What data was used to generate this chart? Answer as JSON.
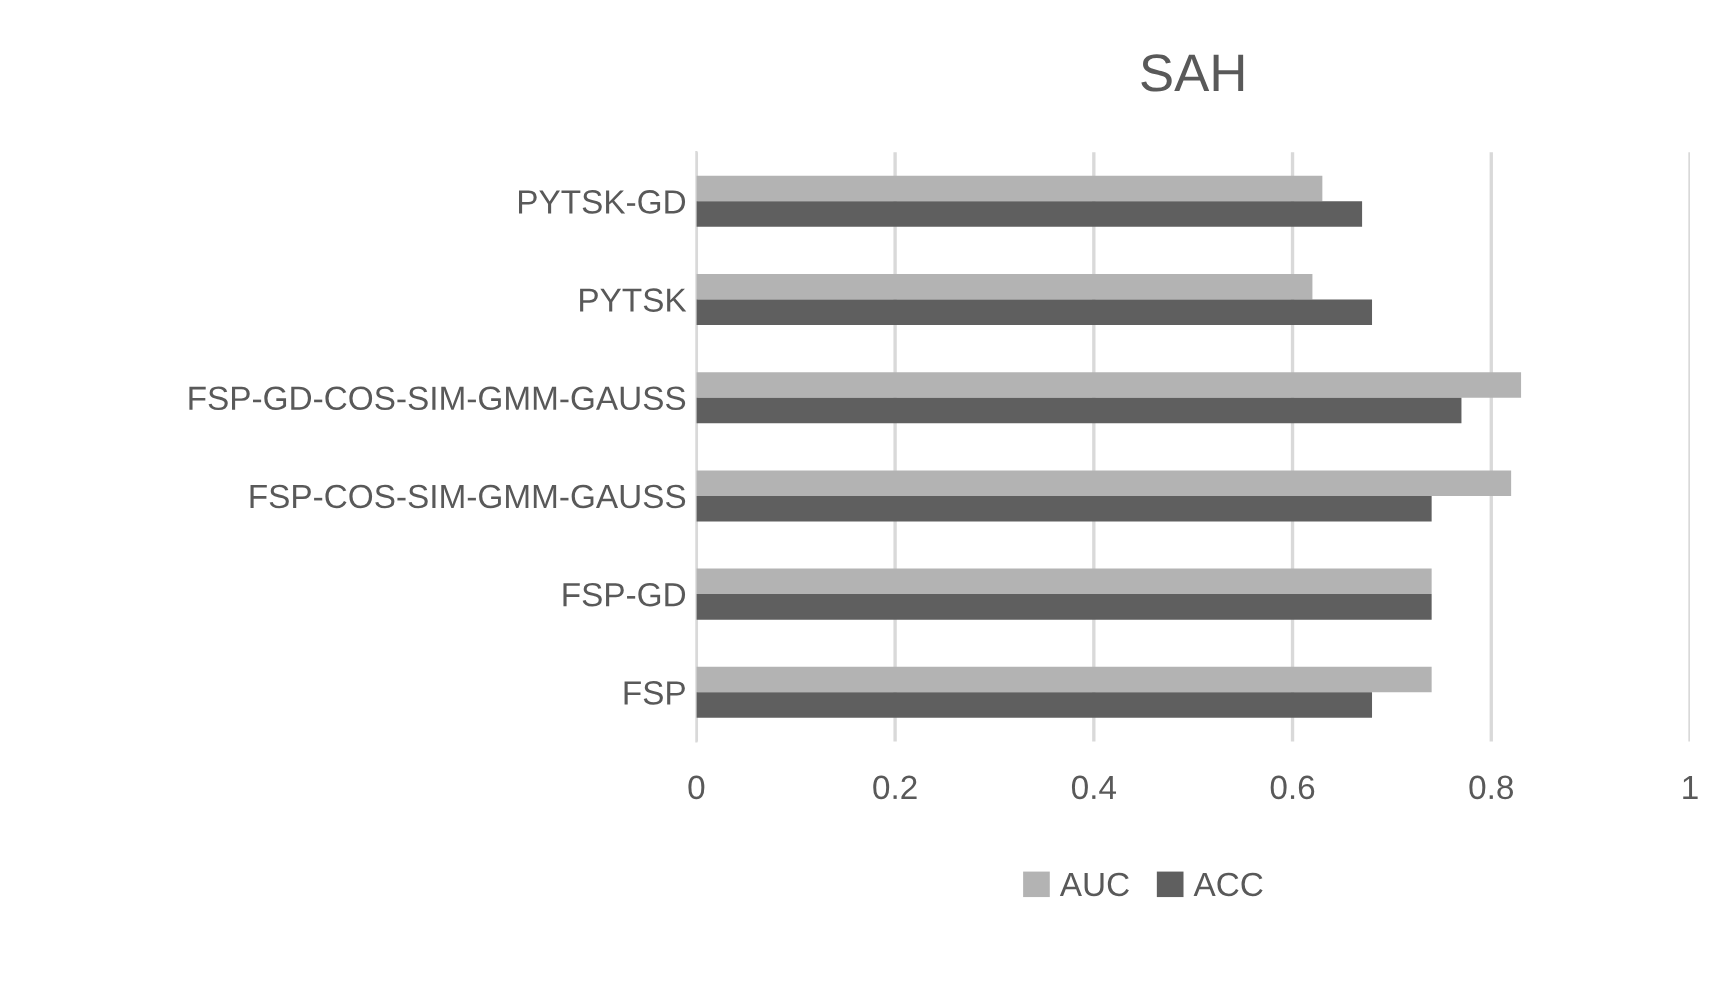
{
  "chart_data": {
    "type": "bar",
    "orientation": "horizontal",
    "title": "SAH",
    "categories": [
      "PYTSK-GD",
      "PYTSK",
      "FSP-GD-COS-SIM-GMM-GAUSS",
      "FSP-COS-SIM-GMM-GAUSS",
      "FSP-GD",
      "FSP"
    ],
    "series": [
      {
        "name": "AUC",
        "color": "#b3b3b3",
        "values": [
          0.63,
          0.62,
          0.83,
          0.82,
          0.74,
          0.74
        ]
      },
      {
        "name": "ACC",
        "color": "#5f5f5f",
        "values": [
          0.67,
          0.68,
          0.77,
          0.74,
          0.74,
          0.68
        ]
      }
    ],
    "xlim": [
      0,
      1
    ],
    "xticks": [
      0,
      0.2,
      0.4,
      0.6,
      0.8,
      1
    ],
    "grid": "x",
    "legend": "bottom"
  }
}
